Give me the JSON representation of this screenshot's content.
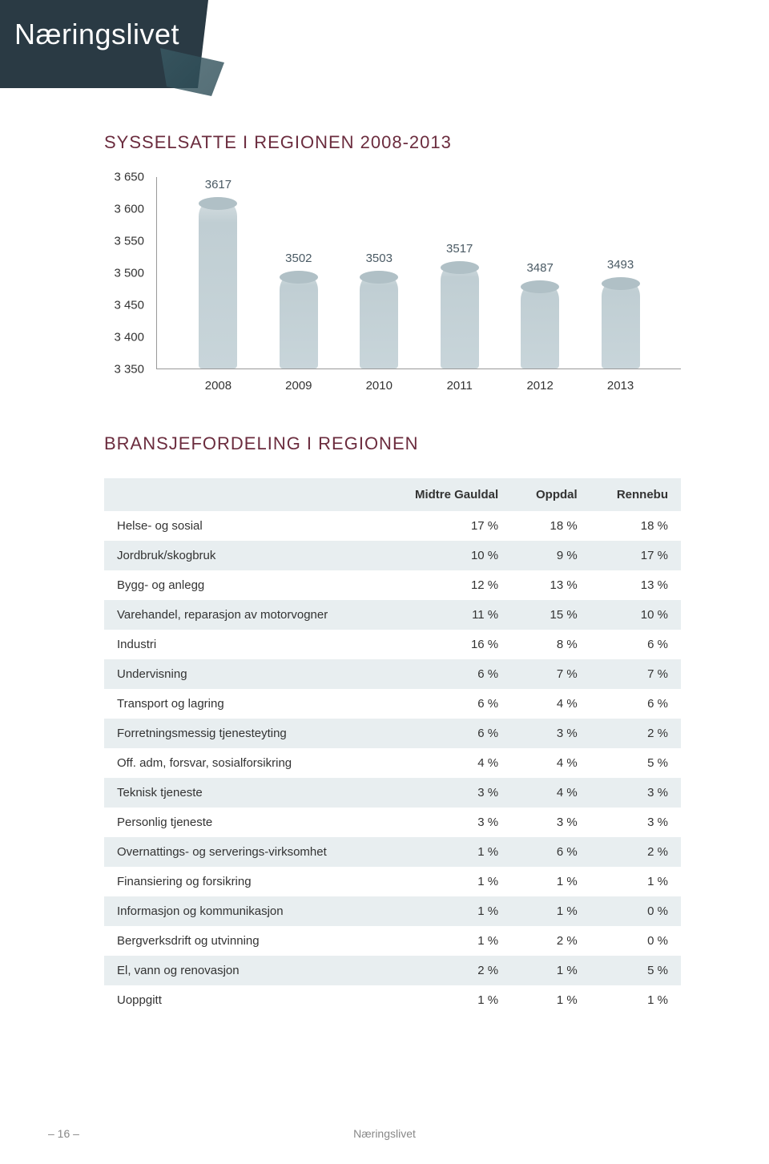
{
  "page_title": "Næringslivet",
  "page_number": "– 16 –",
  "footer_text": "Næringslivet",
  "chart": {
    "type": "bar",
    "title": "SYSSELSATTE I REGIONEN 2008-2013",
    "categories": [
      "2008",
      "2009",
      "2010",
      "2011",
      "2012",
      "2013"
    ],
    "values": [
      3617,
      3502,
      3503,
      3517,
      3487,
      3493
    ],
    "ylim": [
      3350,
      3650
    ],
    "ytick_step": 50,
    "yticks": [
      "3 650",
      "3 600",
      "3 550",
      "3 500",
      "3 450",
      "3 400",
      "3 350"
    ],
    "bar_color": "#c8d5da",
    "value_color": "#4a5a64",
    "title_color": "#6b2c3e",
    "title_fontsize": 22,
    "label_fontsize": 15,
    "background_color": "#ffffff"
  },
  "table": {
    "title": "BRANSJEFORDELING I REGIONEN",
    "title_color": "#6b2c3e",
    "columns": [
      "",
      "Midtre Gauldal",
      "Oppdal",
      "Rennebu"
    ],
    "header_bg": "#e8eef0",
    "row_alt_bg": "#e8eef0",
    "rows": [
      [
        "Helse- og sosial",
        "17 %",
        "18 %",
        "18 %"
      ],
      [
        "Jordbruk/skogbruk",
        "10 %",
        "9 %",
        "17 %"
      ],
      [
        "Bygg- og anlegg",
        "12 %",
        "13 %",
        "13 %"
      ],
      [
        "Varehandel, reparasjon av motorvogner",
        "11 %",
        "15 %",
        "10 %"
      ],
      [
        "Industri",
        "16 %",
        "8 %",
        "6 %"
      ],
      [
        "Undervisning",
        "6 %",
        "7 %",
        "7 %"
      ],
      [
        "Transport og lagring",
        "6 %",
        "4 %",
        "6 %"
      ],
      [
        "Forretningsmessig tjenesteyting",
        "6 %",
        "3 %",
        "2 %"
      ],
      [
        "Off. adm, forsvar, sosialforsikring",
        "4 %",
        "4 %",
        "5 %"
      ],
      [
        "Teknisk tjeneste",
        "3 %",
        "4 %",
        "3 %"
      ],
      [
        "Personlig tjeneste",
        "3 %",
        "3 %",
        "3 %"
      ],
      [
        "Overnattings- og serverings-virksomhet",
        "1 %",
        "6 %",
        "2 %"
      ],
      [
        "Finansiering og forsikring",
        "1 %",
        "1 %",
        "1 %"
      ],
      [
        "Informasjon og kommunikasjon",
        "1 %",
        "1 %",
        "0 %"
      ],
      [
        "Bergverksdrift og utvinning",
        "1 %",
        "2 %",
        "0 %"
      ],
      [
        "El, vann og renovasjon",
        "2 %",
        "1 %",
        "5 %"
      ],
      [
        "Uoppgitt",
        "1 %",
        "1 %",
        "1 %"
      ]
    ]
  }
}
